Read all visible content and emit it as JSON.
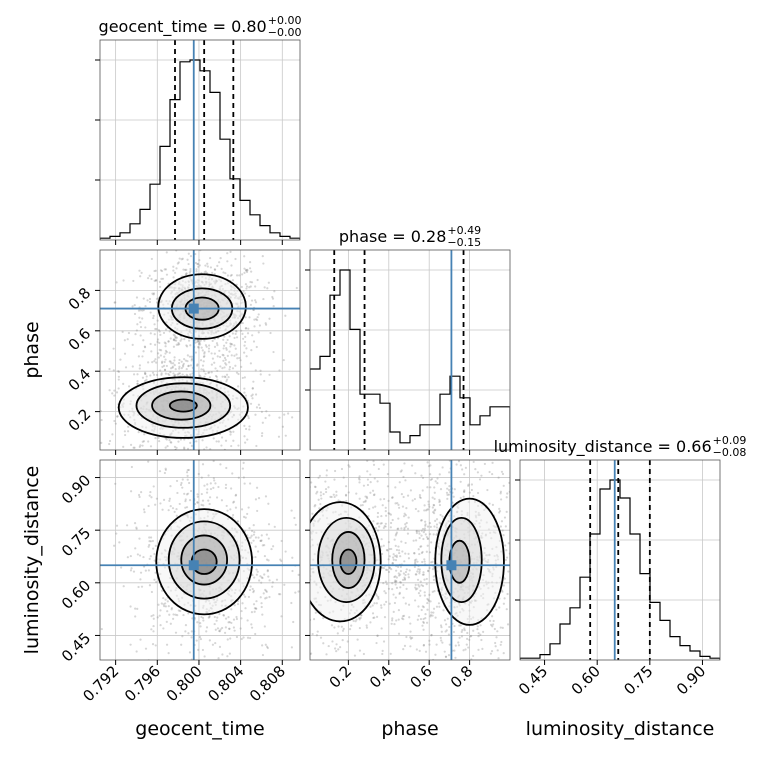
{
  "chart_data": {
    "type": "corner",
    "parameters": [
      "geocent_time",
      "phase",
      "luminosity_distance"
    ],
    "truths": {
      "geocent_time": 0.7995,
      "phase": 0.71,
      "luminosity_distance": 0.65
    },
    "colors": {
      "truth": "#4682b4",
      "hist": "#000000",
      "grid": "#c8c8c8",
      "points": "#8a8a8a"
    },
    "titles": [
      {
        "name": "geocent_time",
        "prefix": "geocent_time = 0.80",
        "sup": "+0.00",
        "sub": "−0.00"
      },
      {
        "name": "phase",
        "prefix": "phase = 0.28",
        "sup": "+0.49",
        "sub": "−0.15"
      },
      {
        "name": "luminosity_distance",
        "prefix": "luminosity_distance = 0.66",
        "sup": "+0.09",
        "sub": "−0.08"
      }
    ],
    "ranges": {
      "geocent_time": [
        0.7905,
        0.8097
      ],
      "phase": [
        0.01,
        1.0
      ],
      "luminosity_distance": [
        0.38,
        0.95
      ]
    },
    "ticks": {
      "geocent_time": {
        "values": [
          0.792,
          0.796,
          0.8,
          0.804,
          0.808
        ],
        "labels": [
          "0.792",
          "0.796",
          "0.800",
          "0.804",
          "0.808"
        ]
      },
      "phase": {
        "values": [
          0.2,
          0.4,
          0.6,
          0.8
        ],
        "labels": [
          "0.2",
          "0.4",
          "0.6",
          "0.8"
        ]
      },
      "luminosity_distance": {
        "values": [
          0.45,
          0.6,
          0.75,
          0.9
        ],
        "labels": [
          "0.45",
          "0.60",
          "0.75",
          "0.90"
        ]
      }
    },
    "quantiles": {
      "geocent_time": [
        0.7977,
        0.8005,
        0.8033
      ],
      "phase": [
        0.13,
        0.28,
        0.77
      ],
      "luminosity_distance": [
        0.58,
        0.66,
        0.75
      ]
    },
    "histograms": {
      "geocent_time": [
        1,
        2,
        4,
        9,
        17,
        31,
        52,
        78,
        99,
        100,
        94,
        82,
        56,
        34,
        22,
        14,
        8,
        4,
        2,
        1
      ],
      "phase": [
        45,
        52,
        86,
        100,
        67,
        31,
        31,
        26,
        10,
        4,
        8,
        14,
        14,
        31,
        41,
        29,
        14,
        19,
        24,
        24
      ],
      "luminosity_distance": [
        1,
        1,
        3,
        9,
        20,
        29,
        46,
        70,
        95,
        100,
        90,
        70,
        48,
        32,
        22,
        13,
        8,
        5,
        2,
        1
      ]
    },
    "clusters": [
      {
        "x": "geocent_time",
        "y": "phase",
        "blobs": [
          {
            "cx": 0.8003,
            "cy": 0.71,
            "sx": 0.0018,
            "sy": 0.08
          },
          {
            "cx": 0.7985,
            "cy": 0.23,
            "sx": 0.0022,
            "sy": 0.09
          }
        ]
      },
      {
        "x": "geocent_time",
        "y": "luminosity_distance",
        "blobs": [
          {
            "cx": 0.8005,
            "cy": 0.66,
            "sx": 0.0022,
            "sy": 0.09
          }
        ]
      },
      {
        "x": "phase",
        "y": "luminosity_distance",
        "blobs": [
          {
            "cx": 0.2,
            "cy": 0.66,
            "sx": 0.13,
            "sy": 0.09
          },
          {
            "cx": 0.75,
            "cy": 0.66,
            "sx": 0.1,
            "sy": 0.09
          }
        ]
      }
    ],
    "contours": [
      {
        "x": "geocent_time",
        "y": "phase",
        "levels": [
          {
            "blob": 0,
            "rx": 0.0016,
            "ry": 0.055,
            "cx": 0.8003,
            "cy": 0.71
          },
          {
            "blob": 0,
            "rx": 0.0029,
            "ry": 0.1,
            "cx": 0.8003,
            "cy": 0.71
          },
          {
            "blob": 0,
            "rx": 0.0042,
            "ry": 0.16,
            "cx": 0.8003,
            "cy": 0.72
          },
          {
            "blob": 1,
            "rx": 0.0013,
            "ry": 0.03,
            "cx": 0.7985,
            "cy": 0.23
          },
          {
            "blob": 1,
            "rx": 0.0028,
            "ry": 0.07,
            "cx": 0.7983,
            "cy": 0.23
          },
          {
            "blob": 1,
            "rx": 0.0045,
            "ry": 0.11,
            "cx": 0.7985,
            "cy": 0.23
          },
          {
            "blob": 1,
            "rx": 0.0062,
            "ry": 0.15,
            "cx": 0.7985,
            "cy": 0.22
          }
        ]
      },
      {
        "x": "geocent_time",
        "y": "luminosity_distance",
        "levels": [
          {
            "blob": 0,
            "rx": 0.0012,
            "ry": 0.035,
            "cx": 0.8005,
            "cy": 0.66
          },
          {
            "blob": 0,
            "rx": 0.0022,
            "ry": 0.07,
            "cx": 0.8005,
            "cy": 0.665
          },
          {
            "blob": 0,
            "rx": 0.0034,
            "ry": 0.11,
            "cx": 0.8005,
            "cy": 0.665
          },
          {
            "blob": 0,
            "rx": 0.0046,
            "ry": 0.15,
            "cx": 0.8005,
            "cy": 0.66
          }
        ]
      },
      {
        "x": "phase",
        "y": "luminosity_distance",
        "levels": [
          {
            "blob": 0,
            "rx": 0.04,
            "ry": 0.035,
            "cx": 0.2,
            "cy": 0.66
          },
          {
            "blob": 0,
            "rx": 0.08,
            "ry": 0.08,
            "cx": 0.2,
            "cy": 0.665
          },
          {
            "blob": 0,
            "rx": 0.14,
            "ry": 0.12,
            "cx": 0.19,
            "cy": 0.665
          },
          {
            "blob": 0,
            "rx": 0.2,
            "ry": 0.17,
            "cx": 0.16,
            "cy": 0.66
          },
          {
            "blob": 1,
            "rx": 0.05,
            "ry": 0.06,
            "cx": 0.75,
            "cy": 0.66
          },
          {
            "blob": 1,
            "rx": 0.1,
            "ry": 0.12,
            "cx": 0.76,
            "cy": 0.665
          },
          {
            "blob": 1,
            "rx": 0.17,
            "ry": 0.18,
            "cx": 0.8,
            "cy": 0.66
          }
        ]
      }
    ]
  }
}
